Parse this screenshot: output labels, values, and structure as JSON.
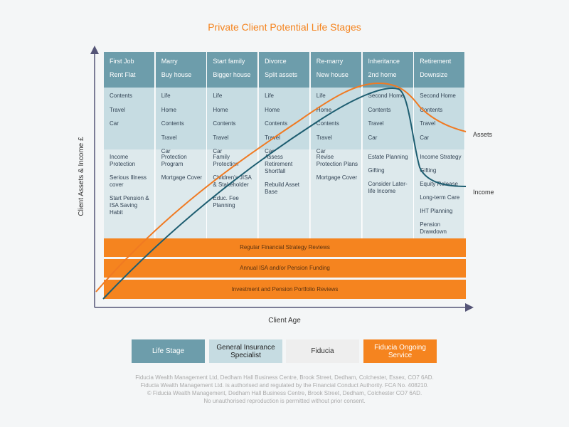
{
  "title": "Private Client Potential Life Stages",
  "y_axis_label": "Client Assets & Income £",
  "x_axis_label": "Client Age",
  "stages": [
    {
      "header": "First Job",
      "subheader": "Rent Flat",
      "insurance": [
        "Contents",
        "Travel",
        "Car"
      ],
      "planning": [
        "Income Protection",
        "Serious Illness cover",
        "Start Pension & ISA Saving Habit"
      ]
    },
    {
      "header": "Marry",
      "subheader": "Buy house",
      "insurance": [
        "Life",
        "Home",
        "Contents",
        "Travel",
        "Car"
      ],
      "planning": [
        "Protection Program",
        "Mortgage Cover"
      ]
    },
    {
      "header": "Start family",
      "subheader": "Bigger house",
      "insurance": [
        "Life",
        "Home",
        "Contents",
        "Travel",
        "Car"
      ],
      "planning": [
        "Family Protection",
        "Children's JISA & Stakeholder",
        "Educ. Fee Planning"
      ]
    },
    {
      "header": "Divorce",
      "subheader": "Split assets",
      "insurance": [
        "Life",
        "Home",
        "Contents",
        "Travel",
        "Car"
      ],
      "planning": [
        "Assess Retirement Shortfall",
        "Rebuild Asset Base"
      ]
    },
    {
      "header": "Re-marry",
      "subheader": "New house",
      "insurance": [
        "Life",
        "Home",
        "Contents",
        "Travel",
        "Car"
      ],
      "planning": [
        "Revise Protection Plans",
        "Mortgage Cover"
      ]
    },
    {
      "header": "Inheritance",
      "subheader": "2nd home",
      "insurance": [
        "Second Home",
        "Contents",
        "Travel",
        "Car"
      ],
      "planning": [
        "Estate Planning",
        "Gifting",
        "Consider Later-life Income"
      ]
    },
    {
      "header": "Retirement",
      "subheader": "Downsize",
      "insurance": [
        "Second Home",
        "Contents",
        "Travel",
        "Car"
      ],
      "planning": [
        "Income Strategy",
        "Gifting",
        "Equity Release",
        "Long-term Care",
        "IHT Planning",
        "Pension Drawdown"
      ]
    }
  ],
  "ongoing": [
    "Regular Financial Strategy Reviews",
    "Annual ISA and/or Pension Funding",
    "Investment and Pension Portfolio Reviews"
  ],
  "curve_labels": {
    "assets": "Assets",
    "income": "Income"
  },
  "legend": [
    "Life Stage",
    "General Insurance Specialist",
    "Fiducia",
    "Fiducia Ongoing Service"
  ],
  "footer": [
    "Fiducia Wealth Management Ltd, Dedham Hall Business Centre, Brook Street, Dedham, Colchester, Essex, CO7 6AD.",
    "Fiducia Wealth Management Ltd. is authorised and regulated by the Financial Conduct Authority. FCA No. 408210.",
    "© Fiducia Wealth Management, Dedham Hall Business Centre, Brook Street, Dedham, Colchester CO7 6AD.",
    "No unauthorised reproduction is permitted without prior consent."
  ]
}
